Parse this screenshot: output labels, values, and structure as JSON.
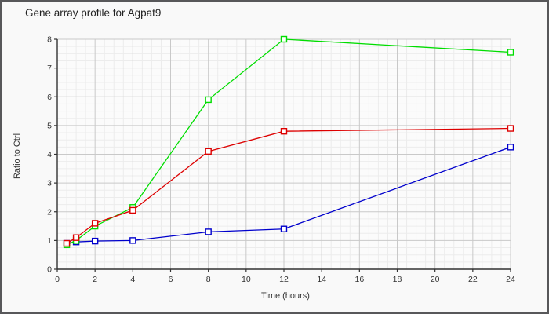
{
  "window": {
    "background": "#f9f9f9",
    "border_color": "#58585a"
  },
  "chart_data": {
    "type": "line",
    "title": "Gene array profile for Agpat9",
    "xlabel": "Time (hours)",
    "ylabel": "Ratio to Ctrl",
    "x": [
      0.5,
      1,
      2,
      4,
      8,
      12,
      24
    ],
    "series": [
      {
        "name": "blue-series",
        "color": "#0000cc",
        "values": [
          0.9,
          0.95,
          0.98,
          1.0,
          1.3,
          1.4,
          4.25
        ]
      },
      {
        "name": "green-series",
        "color": "#00dd00",
        "values": [
          0.85,
          1.0,
          1.5,
          2.15,
          5.9,
          8.0,
          7.55
        ]
      },
      {
        "name": "red-series",
        "color": "#dd0000",
        "values": [
          0.9,
          1.1,
          1.6,
          2.05,
          4.1,
          4.8,
          4.9
        ]
      }
    ],
    "xlim": [
      0,
      24
    ],
    "ylim": [
      0,
      8
    ],
    "x_ticks": [
      0,
      2,
      4,
      6,
      8,
      10,
      12,
      14,
      16,
      18,
      20,
      22,
      24
    ],
    "y_ticks": [
      0,
      1,
      2,
      3,
      4,
      5,
      6,
      7,
      8
    ],
    "x_minor_step": 0.5,
    "y_minor_step": 0.25,
    "grid": true,
    "legend": false,
    "marker": "square",
    "style": {
      "major_grid_color": "#c9c9c9",
      "minor_grid_color": "#ececec",
      "axis_color": "#333333",
      "tick_label_color": "#333333",
      "plot_background": "#fbfbfb"
    }
  }
}
